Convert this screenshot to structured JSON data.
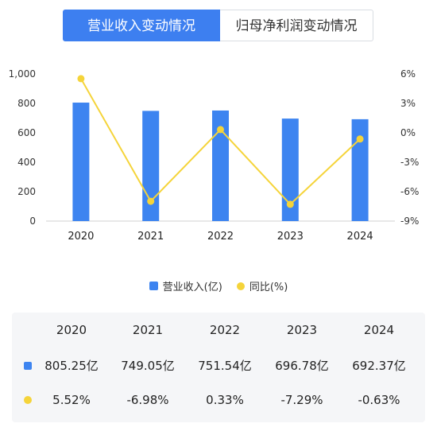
{
  "tabs": [
    {
      "label": "营业收入变动情况",
      "active": true
    },
    {
      "label": "归母净利润变动情况",
      "active": false
    }
  ],
  "colors": {
    "bar": "#3d84f0",
    "line": "#f5d43a",
    "accent": "#3d7ff0"
  },
  "chart_data": {
    "type": "bar+line",
    "categories": [
      "2020",
      "2021",
      "2022",
      "2023",
      "2024"
    ],
    "series": [
      {
        "name": "营业收入(亿)",
        "type": "bar",
        "axis": "left",
        "values": [
          805.25,
          749.05,
          751.54,
          696.78,
          692.37
        ]
      },
      {
        "name": "同比(%)",
        "type": "line",
        "axis": "right",
        "values": [
          5.52,
          -6.98,
          0.33,
          -7.29,
          -0.63
        ]
      }
    ],
    "y_left": {
      "ticks": [
        "1,000",
        "800",
        "600",
        "400",
        "200",
        "0"
      ],
      "range": [
        0,
        1000
      ]
    },
    "y_right": {
      "ticks": [
        "6%",
        "3%",
        "0%",
        "-3%",
        "-6%",
        "-9%"
      ],
      "range": [
        -9,
        6
      ]
    },
    "legend_position": "bottom"
  },
  "table": {
    "header": [
      "2020",
      "2021",
      "2022",
      "2023",
      "2024"
    ],
    "rows": [
      {
        "marker": "bar",
        "values": [
          "805.25亿",
          "749.05亿",
          "751.54亿",
          "696.78亿",
          "692.37亿"
        ]
      },
      {
        "marker": "line",
        "values": [
          "5.52%",
          "-6.98%",
          "0.33%",
          "-7.29%",
          "-0.63%"
        ]
      }
    ]
  }
}
